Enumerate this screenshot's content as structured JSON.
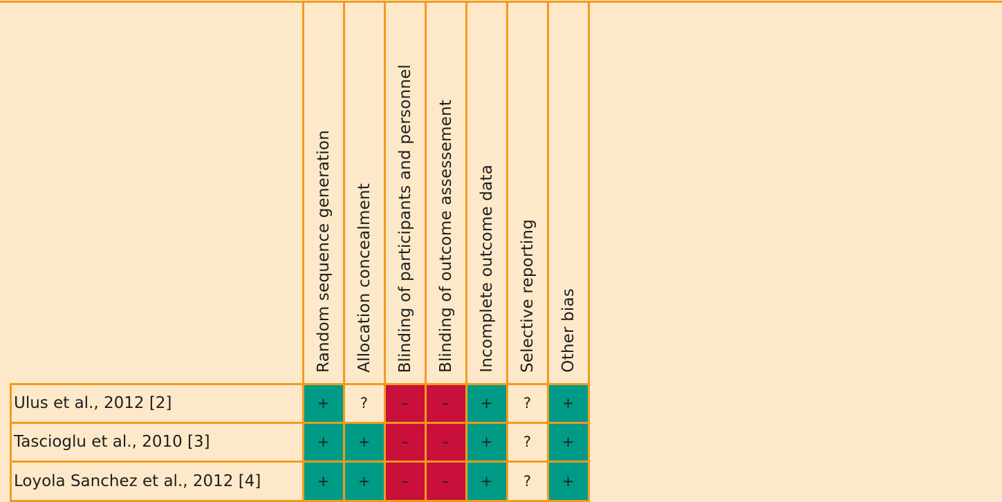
{
  "domains": [
    "Random sequence generation",
    "Allocation concealment",
    "Blinding of participants and personnel",
    "Blinding of outcome assessement",
    "Incomplete outcome data",
    "Selective reporting",
    "Other bias"
  ],
  "studies": [
    {
      "label": "Ulus et al., 2012 [2]",
      "ratings": [
        "+",
        "?",
        "–",
        "–",
        "+",
        "?",
        "+"
      ]
    },
    {
      "label": "Tascioglu et al., 2010 [3]",
      "ratings": [
        "+",
        "+",
        "–",
        "–",
        "+",
        "?",
        "+"
      ]
    },
    {
      "label": "Loyola Sanchez et al., 2012 [4]",
      "ratings": [
        "+",
        "+",
        "–",
        "–",
        "+",
        "?",
        "+"
      ]
    }
  ],
  "colors": {
    "background": "#fde9c9",
    "grid_line": "#f29a1f",
    "low_risk": "#009b86",
    "high_risk": "#c8103a",
    "text": "#1e1e1e"
  }
}
